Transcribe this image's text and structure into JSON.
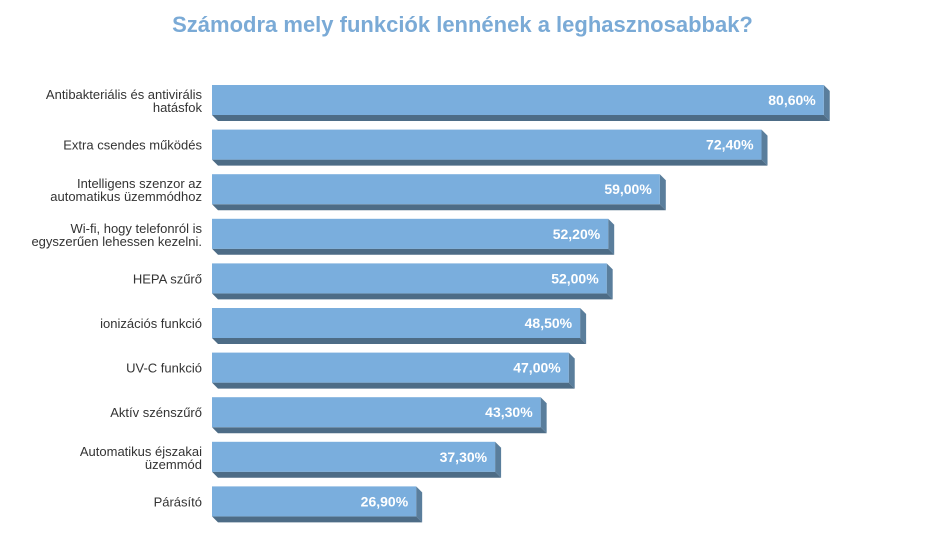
{
  "chart_data": {
    "type": "bar",
    "orientation": "horizontal",
    "title": "Számodra mely funkciók lennének a leghasznosabbak?",
    "xlabel": "",
    "ylabel": "",
    "xlim": [
      0,
      100
    ],
    "grid": false,
    "legend": "none",
    "categories": [
      [
        "Antibakteriális és antivirális",
        "hatásfok"
      ],
      [
        "Extra csendes működés"
      ],
      [
        "Intelligens szenzor az",
        "automatikus üzemmódhoz"
      ],
      [
        "Wi-fi, hogy telefonról is",
        "egyszerűen lehessen kezelni."
      ],
      [
        "HEPA szűrő"
      ],
      [
        "ionizációs funkció"
      ],
      [
        "UV-C funkció"
      ],
      [
        "Aktív szénszűrő"
      ],
      [
        "Automatikus éjszakai",
        "üzemmód"
      ],
      [
        "Párásító"
      ]
    ],
    "values": [
      80.6,
      72.4,
      59.0,
      52.2,
      52.0,
      48.5,
      47.0,
      43.3,
      37.3,
      26.9
    ],
    "value_labels": [
      "80,60%",
      "72,40%",
      "59,00%",
      "52,20%",
      "52,00%",
      "48,50%",
      "47,00%",
      "43,30%",
      "37,30%",
      "26,90%"
    ],
    "colors": {
      "bar_face": "#7aaedd",
      "bar_side": "#5a7e9c",
      "bar_bottom": "#4d6c86",
      "title": "#7aaad6"
    }
  }
}
